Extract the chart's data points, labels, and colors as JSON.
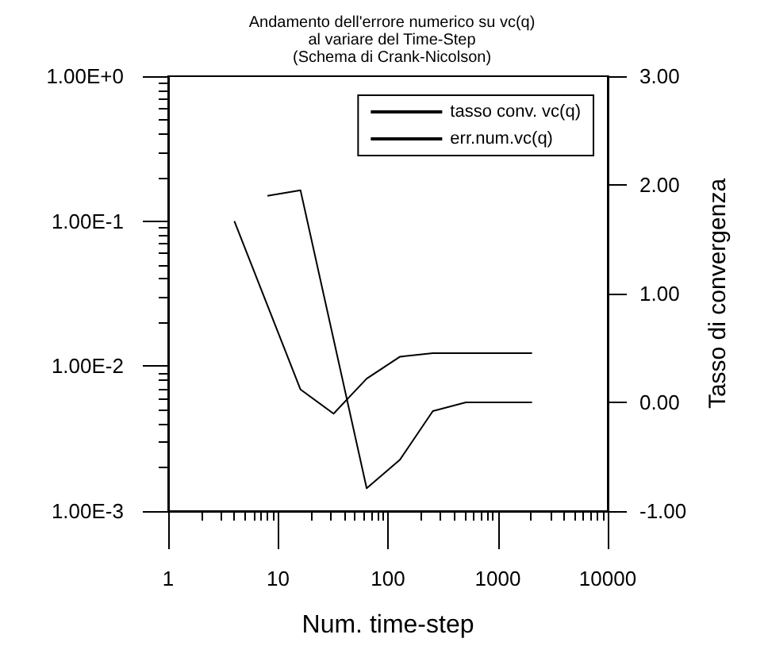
{
  "chart_data": {
    "type": "line",
    "title": "Andamento dell'errore numerico su vc(q)\nal variare del Time-Step\n(Schema di Crank-Nicolson)",
    "xlabel": "Num. time-step",
    "y2label": "Tasso di convergenza",
    "series": [
      {
        "name": "tasso conv. vc(q)",
        "color": "#000000",
        "axis": "y2",
        "x": [
          8,
          16,
          64,
          128,
          256,
          512,
          1024,
          2048
        ],
        "values": [
          1.9,
          1.95,
          -0.79,
          -0.53,
          -0.08,
          0.0,
          0.0,
          0.0
        ]
      },
      {
        "name": "err.num.vc(q)",
        "color": "#000000",
        "x": [
          4,
          16,
          32,
          64,
          128,
          256,
          512,
          1024,
          2048
        ],
        "values": [
          0.1,
          0.0069,
          0.0047,
          0.0082,
          0.0116,
          0.0123,
          0.0123,
          0.0123,
          0.0123
        ]
      }
    ],
    "log": "xy",
    "xlim": [
      1,
      10000
    ],
    "xticks": [
      1,
      10,
      100,
      1000,
      10000
    ],
    "ylim": [
      0.001,
      1
    ],
    "yticks": [
      {
        "value": 0.001,
        "label": "1.00E-3"
      },
      {
        "value": 0.01,
        "label": "1.00E-2"
      },
      {
        "value": 0.1,
        "label": "1.00E-1"
      },
      {
        "value": 1,
        "label": "1.00E+0"
      }
    ],
    "y2lim": [
      -1,
      3
    ],
    "y2ticks": [
      {
        "value": -1,
        "label": "-1.00"
      },
      {
        "value": 0,
        "label": "0.00"
      },
      {
        "value": 1,
        "label": "1.00"
      },
      {
        "value": 2,
        "label": "2.00"
      },
      {
        "value": 3,
        "label": "3.00"
      }
    ],
    "grid": false,
    "legend": "top right",
    "marker": "none",
    "line_style": "solid"
  }
}
